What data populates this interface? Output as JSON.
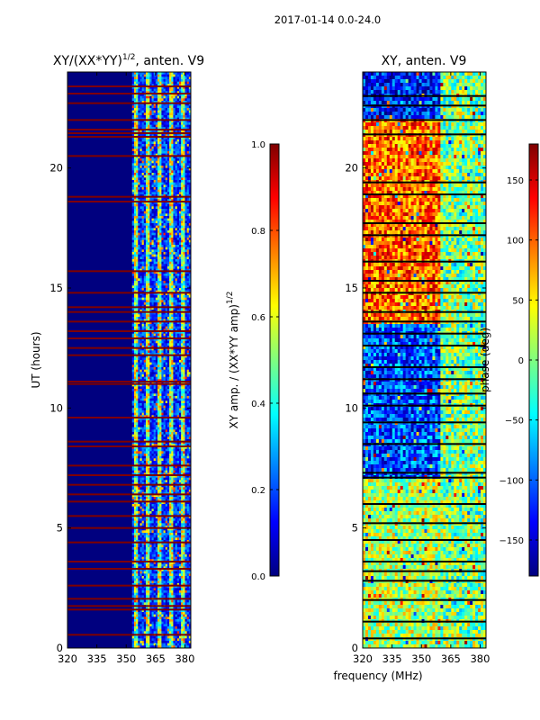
{
  "suptitle": "2017-01-14 0.0-24.0",
  "colors": {
    "jet": [
      "#00007f",
      "#0000ff",
      "#007fff",
      "#00ffff",
      "#7fff7f",
      "#ffff00",
      "#ff7f00",
      "#ff0000",
      "#7f0000"
    ]
  },
  "chart_data": [
    {
      "type": "heatmap",
      "title": "XY/(XX*YY)",
      "title_sup": "1/2",
      "title_suffix": ", anten. V9",
      "xlabel": "",
      "ylabel": "UT (hours)",
      "xlim": [
        320,
        383
      ],
      "ylim": [
        0,
        24
      ],
      "xticks": [
        320,
        335,
        350,
        365,
        380
      ],
      "yticks": [
        0,
        5,
        10,
        15,
        20
      ],
      "colorbar": {
        "label": "XY amp. / (XX*YY amp)",
        "label_sup": "1/2",
        "range": [
          0.0,
          1.0
        ],
        "ticks": [
          "0.0",
          "0.2",
          "0.4",
          "0.6",
          "0.8",
          "1.0"
        ],
        "tick_values": [
          0.0,
          0.2,
          0.4,
          0.6,
          0.8,
          1.0
        ]
      },
      "flag_rows_hours": [
        0.55,
        1.6,
        1.75,
        2.05,
        2.6,
        3.3,
        3.6,
        4.4,
        5.0,
        5.5,
        6.1,
        6.4,
        6.8,
        7.2,
        7.6,
        8.4,
        8.6,
        9.6,
        11.0,
        11.1,
        12.2,
        12.5,
        12.9,
        13.2,
        13.6,
        14.0,
        14.2,
        14.8,
        15.7,
        18.6,
        18.8,
        20.5,
        21.3,
        21.45,
        21.6,
        22.0,
        22.7,
        23.1,
        23.4
      ],
      "band_start_mhz": 353
    },
    {
      "type": "heatmap",
      "title": "XY, anten. V9",
      "xlabel": "frequency (MHz)",
      "ylabel": "",
      "xlim": [
        320,
        383
      ],
      "ylim": [
        0,
        24
      ],
      "xticks": [
        320,
        335,
        350,
        365,
        380
      ],
      "yticks": [
        0,
        5,
        10,
        15,
        20
      ],
      "colorbar": {
        "label": "phase (deg)",
        "range": [
          -180,
          180
        ],
        "ticks": [
          "150",
          "100",
          "50",
          "0",
          "−50",
          "−100",
          "−150"
        ],
        "tick_values": [
          150,
          100,
          50,
          0,
          -50,
          -100,
          -150
        ]
      },
      "flag_rows_hours": [
        0.4,
        1.1,
        2.0,
        2.8,
        3.2,
        3.6,
        4.5,
        5.2,
        6.0,
        7.1,
        7.3,
        8.5,
        9.4,
        10.1,
        10.6,
        11.2,
        11.7,
        12.6,
        13.1,
        13.6,
        14.0,
        14.8,
        15.3,
        16.1,
        17.2,
        17.7,
        18.9,
        19.4,
        21.4,
        22.0,
        22.6,
        23.0
      ]
    }
  ]
}
